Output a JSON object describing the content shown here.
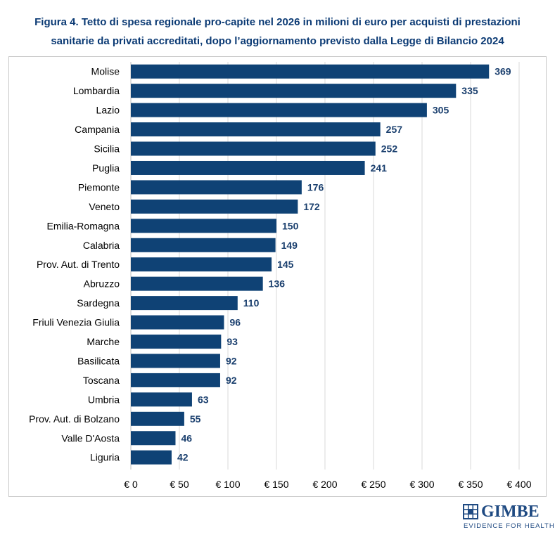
{
  "title": {
    "line1": "Figura 4. Tetto di spesa regionale pro-capite nel 2026 in milioni di euro per acquisti di prestazioni",
    "line2": "sanitarie da privati accreditati, dopo l’aggiornamento previsto dalla Legge di Bilancio 2024"
  },
  "logo": {
    "name": "GIMBE",
    "tagline": "EVIDENCE FOR HEALTH",
    "icon": "gimbe-logo-icon"
  },
  "colors": {
    "bar": "#0f4275",
    "label": "#1a3f6e",
    "title": "#0b3a74",
    "grid": "#d9d9d9"
  },
  "chart_data": {
    "type": "bar",
    "orientation": "horizontal",
    "categories": [
      "Molise",
      "Lombardia",
      "Lazio",
      "Campania",
      "Sicilia",
      "Puglia",
      "Piemonte",
      "Veneto",
      "Emilia-Romagna",
      "Calabria",
      "Prov. Aut. di Trento",
      "Abruzzo",
      "Sardegna",
      "Friuli Venezia Giulia",
      "Marche",
      "Basilicata",
      "Toscana",
      "Umbria",
      "Prov. Aut. di Bolzano",
      "Valle D'Aosta",
      "Liguria"
    ],
    "values": [
      369,
      335,
      305,
      257,
      252,
      241,
      176,
      172,
      150,
      149,
      145,
      136,
      110,
      96,
      93,
      92,
      92,
      63,
      55,
      46,
      42
    ],
    "xlim": [
      0,
      400
    ],
    "xticks": [
      0,
      50,
      100,
      150,
      200,
      250,
      300,
      350,
      400
    ],
    "xtick_labels": [
      "€ 0",
      "€ 50",
      "€ 100",
      "€ 150",
      "€ 200",
      "€ 250",
      "€ 300",
      "€ 350",
      "€ 400"
    ],
    "grid": true
  }
}
